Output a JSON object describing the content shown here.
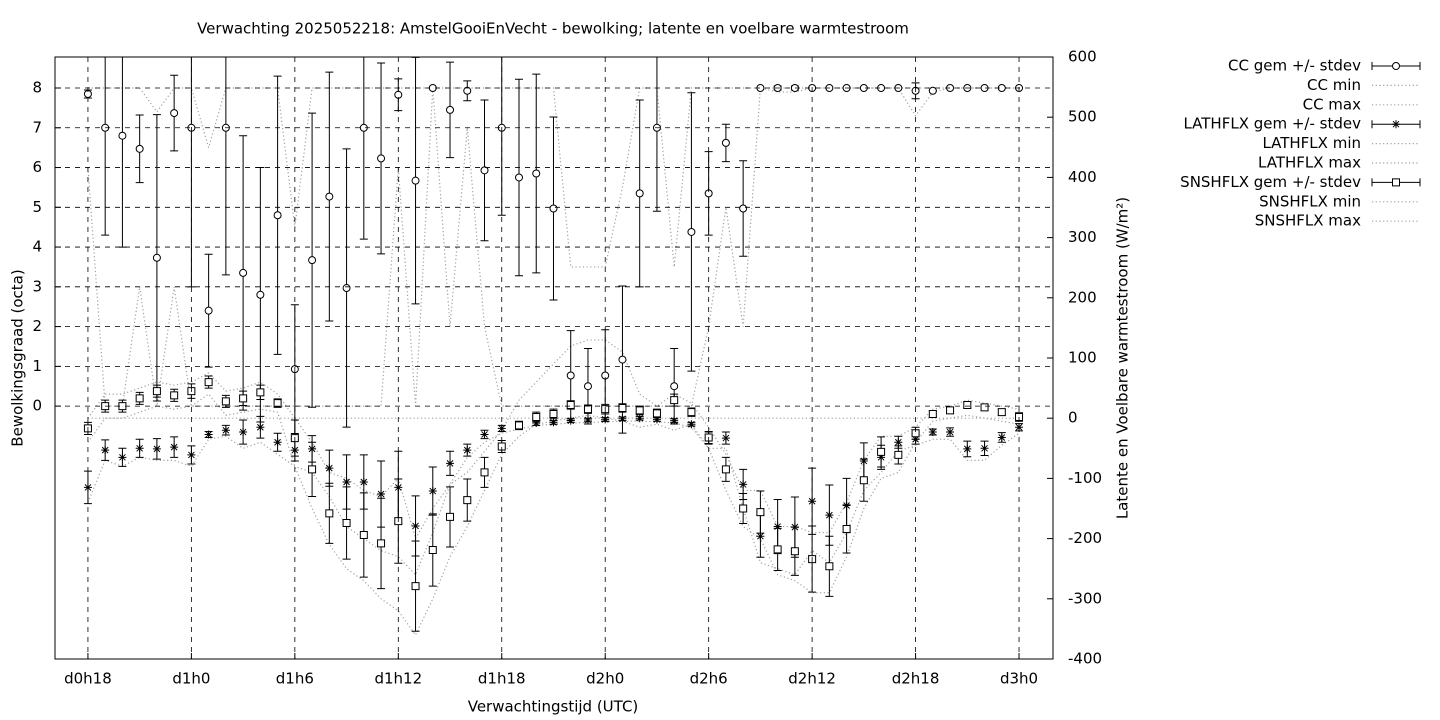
{
  "chart_data": {
    "type": "errorbar",
    "title": "Verwachting 2025052218: AmstelGooiEnVecht - bewolking; latente en voelbare warmtestroom",
    "xlabel": "Verwachtingstijd (UTC)",
    "ylabel": "Bewolkingsgraad (octa)",
    "y2label": "Latente en Voelbare warmtestroom (W/m²)",
    "grid": true,
    "legend": "outside-right",
    "xlim": [
      16.09,
      73.97
    ],
    "ylim": [
      -6.36,
      8.78
    ],
    "y2lim": [
      -400,
      600
    ],
    "xticks": [
      {
        "value": 18,
        "label": "d0h18"
      },
      {
        "value": 24,
        "label": "d1h0"
      },
      {
        "value": 30,
        "label": "d1h6"
      },
      {
        "value": 36,
        "label": "d1h12"
      },
      {
        "value": 42,
        "label": "d1h18"
      },
      {
        "value": 48,
        "label": "d2h0"
      },
      {
        "value": 54,
        "label": "d2h6"
      },
      {
        "value": 60,
        "label": "d2h12"
      },
      {
        "value": 66,
        "label": "d2h18"
      },
      {
        "value": 72,
        "label": "d3h0"
      }
    ],
    "yticks": [
      0,
      1,
      2,
      3,
      4,
      5,
      6,
      7,
      8
    ],
    "y2ticks": [
      -400,
      -300,
      -200,
      -100,
      0,
      100,
      200,
      300,
      400,
      500,
      600
    ],
    "x": [
      18,
      19,
      20,
      21,
      22,
      23,
      24,
      25,
      26,
      27,
      28,
      29,
      30,
      31,
      32,
      33,
      34,
      35,
      36,
      37,
      38,
      39,
      40,
      41,
      42,
      43,
      44,
      45,
      46,
      47,
      48,
      49,
      50,
      51,
      52,
      53,
      54,
      55,
      56,
      57,
      58,
      59,
      60,
      61,
      62,
      63,
      64,
      65,
      66,
      67,
      68,
      69,
      70,
      71,
      72
    ],
    "series": [
      {
        "name": "CC gem +/- stdev",
        "axis": "y",
        "style": "errorbars",
        "marker": "circle",
        "color": "#000000",
        "values": [
          7.85,
          7.0,
          6.8,
          6.47,
          3.73,
          7.37,
          7.0,
          2.4,
          7.0,
          3.35,
          2.8,
          4.8,
          0.93,
          3.67,
          5.27,
          2.97,
          7.0,
          6.23,
          7.83,
          5.67,
          8.0,
          7.45,
          7.93,
          5.93,
          7.0,
          5.75,
          5.85,
          4.97,
          0.77,
          0.5,
          0.77,
          1.17,
          5.35,
          7.0,
          0.5,
          4.38,
          5.35,
          6.62,
          4.97,
          8,
          8,
          8,
          8,
          8,
          8,
          8,
          8,
          8,
          7.93,
          7.93,
          8,
          8,
          8,
          8,
          8
        ],
        "stdev": [
          0.1,
          2.7,
          2.8,
          0.85,
          3.6,
          0.95,
          4.0,
          1.42,
          3.7,
          3.45,
          3.2,
          3.5,
          1.62,
          3.7,
          3.13,
          3.5,
          2.8,
          2.4,
          0.4,
          3.1,
          0,
          1.2,
          0.25,
          1.77,
          2.2,
          2.47,
          2.5,
          2.3,
          1.13,
          0.95,
          1.15,
          1.85,
          2.35,
          2.1,
          0.95,
          3.5,
          1.05,
          0.47,
          1.2,
          0,
          0.05,
          0.05,
          0,
          0,
          0,
          0,
          0,
          0,
          0.2,
          0,
          0,
          0,
          0,
          0,
          0
        ]
      },
      {
        "name": "CC min",
        "axis": "y",
        "style": "dotted",
        "color": "#a0a0a0",
        "values": [
          6,
          0,
          0,
          3,
          0,
          3,
          0,
          0,
          0,
          0,
          0,
          0,
          0,
          0,
          0,
          0,
          0,
          0,
          6,
          0,
          8,
          2,
          7,
          2,
          0,
          0,
          0,
          0,
          0,
          0,
          0,
          0,
          0,
          0,
          0,
          0,
          2,
          5,
          2,
          8,
          7.9,
          7.9,
          8,
          8,
          8,
          8,
          8,
          8,
          7.3,
          7.9,
          8,
          8,
          8,
          8,
          8
        ]
      },
      {
        "name": "CC max",
        "axis": "y",
        "style": "dotted",
        "color": "#a0a0a0",
        "values": [
          8,
          8,
          8,
          8,
          7.4,
          8,
          8,
          6.5,
          8,
          8,
          8,
          8,
          4.5,
          8,
          8,
          8,
          8,
          8,
          8,
          8,
          8,
          8,
          8,
          8,
          8,
          8,
          8,
          8,
          3.5,
          3.5,
          3.5,
          5.5,
          8,
          8,
          3.5,
          8,
          8,
          8,
          8,
          8,
          8,
          8,
          8,
          8,
          8,
          8,
          8,
          8,
          8,
          8,
          8,
          8,
          8,
          8,
          8
        ]
      },
      {
        "name": "LATHFLX gem +/- stdev",
        "axis": "y2",
        "style": "errorbars",
        "marker": "asterisk",
        "color": "#000000",
        "values": [
          -115,
          -53,
          -65,
          -50,
          -51,
          -48,
          -61,
          -27,
          -20,
          -23,
          -15,
          -40,
          -53,
          -51,
          -83,
          -106,
          -106,
          -126,
          -115,
          -179,
          -121,
          -75,
          -53,
          -27,
          -17,
          -12,
          -8,
          -7,
          -4,
          -3,
          -2,
          -1,
          0,
          -2,
          -4,
          -10,
          -33,
          -33,
          -110,
          -196,
          -180,
          -181,
          -138,
          -161,
          -145,
          -71,
          -65,
          -40,
          -35,
          -23,
          -23,
          -51,
          -50,
          -32,
          -15
        ],
        "stdev": [
          27,
          17,
          15,
          15,
          17,
          17,
          15,
          5,
          8,
          20,
          18,
          15,
          18,
          22,
          30,
          45,
          45,
          55,
          60,
          50,
          40,
          20,
          10,
          7,
          5,
          5,
          4,
          3,
          3,
          3,
          3,
          3,
          3,
          3,
          3,
          3,
          10,
          10,
          25,
          35,
          45,
          50,
          55,
          50,
          45,
          30,
          20,
          10,
          8,
          5,
          7,
          13,
          12,
          8,
          6
        ]
      },
      {
        "name": "LATHFLX min",
        "axis": "y2",
        "style": "dotted",
        "color": "#a0a0a0",
        "values": [
          -140,
          -70,
          -80,
          -65,
          -70,
          -70,
          -80,
          -35,
          -30,
          -50,
          -40,
          -60,
          -80,
          -90,
          -130,
          -180,
          -200,
          -220,
          -230,
          -260,
          -190,
          -110,
          -65,
          -40,
          -25,
          -18,
          -12,
          -10,
          -8,
          -7,
          -6,
          -5,
          -5,
          -6,
          -8,
          -15,
          -50,
          -50,
          -150,
          -240,
          -250,
          -260,
          -220,
          -240,
          -190,
          -120,
          -90,
          -55,
          -45,
          -35,
          -35,
          -70,
          -70,
          -45,
          -25
        ]
      },
      {
        "name": "LATHFLX max",
        "axis": "y2",
        "style": "dotted",
        "color": "#a0a0a0",
        "values": [
          0,
          0,
          0,
          0,
          0,
          0,
          0,
          0,
          0,
          0,
          0,
          0,
          0,
          0,
          0,
          0,
          0,
          0,
          0,
          0,
          0,
          0,
          0,
          0,
          0,
          0,
          0,
          0,
          0,
          0,
          0,
          0,
          0,
          0,
          0,
          0,
          0,
          0,
          0,
          0,
          0,
          0,
          0,
          0,
          0,
          0,
          0,
          0,
          0,
          0,
          0,
          0,
          0,
          0,
          0
        ]
      },
      {
        "name": "SNSHFLX gem +/- stdev",
        "axis": "y2",
        "style": "errorbars",
        "marker": "square",
        "color": "#000000",
        "values": [
          -17,
          20,
          20,
          33,
          45,
          38,
          45,
          60,
          28,
          33,
          43,
          25,
          -33,
          -85,
          -158,
          -174,
          -194,
          -208,
          -171,
          -279,
          -219,
          -164,
          -136,
          -90,
          -47,
          -12,
          2,
          7,
          22,
          15,
          15,
          17,
          13,
          8,
          30,
          10,
          -32,
          -85,
          -150,
          -156,
          -218,
          -221,
          -234,
          -246,
          -184,
          -103,
          -56,
          -61,
          -25,
          7,
          13,
          22,
          18,
          10,
          2
        ],
        "stdev": [
          10,
          10,
          10,
          10,
          10,
          10,
          12,
          10,
          10,
          12,
          12,
          7,
          30,
          45,
          50,
          60,
          70,
          75,
          70,
          75,
          60,
          50,
          35,
          25,
          10,
          7,
          8,
          8,
          7,
          7,
          8,
          7,
          7,
          7,
          10,
          7,
          10,
          20,
          25,
          35,
          35,
          40,
          55,
          50,
          40,
          35,
          25,
          15,
          10,
          5,
          5,
          5,
          5,
          5,
          7
        ]
      },
      {
        "name": "SNSHFLX min",
        "axis": "y2",
        "style": "dotted",
        "color": "#a0a0a0",
        "values": [
          -40,
          0,
          0,
          10,
          20,
          15,
          20,
          40,
          5,
          10,
          15,
          10,
          -80,
          -150,
          -210,
          -250,
          -270,
          -300,
          -320,
          -360,
          -300,
          -230,
          -180,
          -120,
          -60,
          -30,
          -10,
          -5,
          0,
          5,
          0,
          -5,
          -15,
          -10,
          -20,
          -10,
          -50,
          -120,
          -180,
          -200,
          -260,
          -270,
          -290,
          -290,
          -230,
          -150,
          -100,
          -90,
          -40,
          -5,
          0,
          5,
          0,
          -5,
          -10
        ]
      },
      {
        "name": "SNSHFLX max",
        "axis": "y2",
        "style": "dotted",
        "color": "#a0a0a0",
        "values": [
          0,
          40,
          40,
          50,
          60,
          55,
          60,
          75,
          45,
          50,
          60,
          40,
          0,
          -40,
          -90,
          -100,
          -120,
          -130,
          -100,
          -200,
          -150,
          -110,
          -90,
          -55,
          -20,
          30,
          60,
          90,
          120,
          130,
          130,
          110,
          40,
          20,
          40,
          25,
          -15,
          -60,
          -120,
          -120,
          -180,
          -180,
          -190,
          -190,
          -140,
          -70,
          -30,
          -30,
          -15,
          15,
          20,
          30,
          25,
          20,
          15
        ]
      }
    ]
  }
}
